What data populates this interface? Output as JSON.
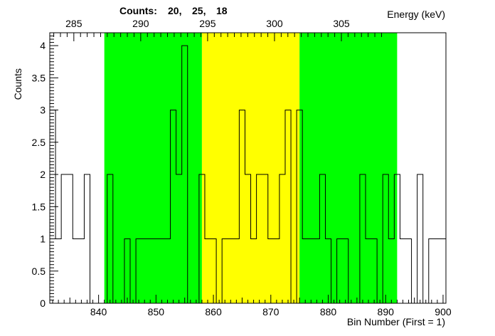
{
  "chart_data": {
    "type": "histogram",
    "title": "",
    "counts_label": "Counts:",
    "counts_values": [
      "20,",
      "25,",
      "18"
    ],
    "xlabel": "Bin Number (First = 1)",
    "ylabel": "Counts",
    "top_axis_label": "Energy (keV)",
    "xlim": [
      831.5,
      900.5
    ],
    "ylim": [
      0,
      4.2
    ],
    "x_ticks": [
      840,
      850,
      860,
      870,
      880,
      890,
      900
    ],
    "y_ticks": [
      0,
      0.5,
      1,
      1.5,
      2,
      2.5,
      3,
      3.5,
      4
    ],
    "y_tick_labels": [
      "0",
      "0.5",
      "1",
      "1.5",
      "2",
      "2.5",
      "3",
      "3.5",
      "4"
    ],
    "top_ticks": [
      285,
      290,
      295,
      300,
      305
    ],
    "top_axis_map": {
      "bin": [
        840,
        900
      ],
      "energy_keV": [
        286.85,
        312.6
      ]
    },
    "regions": [
      {
        "from": 841,
        "to": 858,
        "color": "#00ff00"
      },
      {
        "from": 858,
        "to": 875,
        "color": "#ffff00"
      },
      {
        "from": 875,
        "to": 892,
        "color": "#00ff00"
      }
    ],
    "bins_start": 832,
    "bin_width": 1,
    "values": [
      3,
      1,
      2,
      2,
      1,
      1,
      2,
      0,
      0,
      0,
      2,
      0,
      0,
      1,
      0,
      1,
      1,
      1,
      1,
      1,
      1,
      3,
      2,
      4,
      0,
      0,
      2,
      1,
      1,
      0,
      1,
      1,
      1,
      3,
      2,
      1,
      2,
      2,
      1,
      1,
      2,
      3,
      0,
      3,
      1,
      1,
      1,
      2,
      1,
      0,
      1,
      1,
      0,
      0,
      2,
      1,
      1,
      0,
      2,
      1,
      2,
      1,
      1,
      0,
      2,
      0,
      1,
      1,
      1
    ]
  }
}
